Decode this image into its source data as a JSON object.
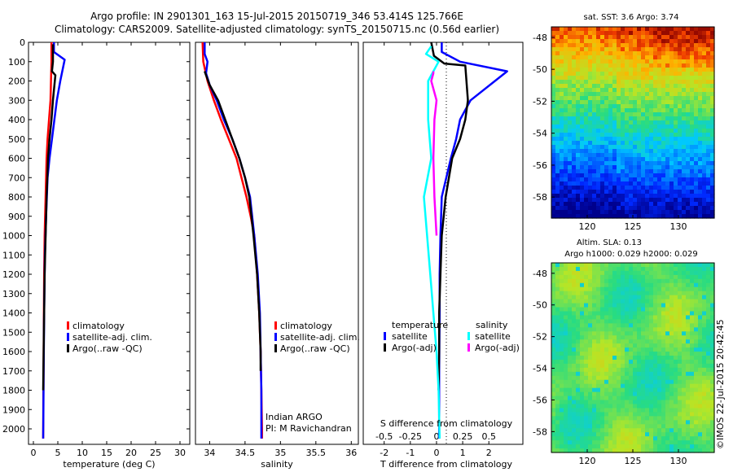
{
  "header": {
    "line1": "Argo profile: IN 2901301_163 15-Jul-2015 20150719_346 53.414S 125.766E",
    "line2": "Climatology: CARS2009. Satellite-adjusted climatology: synTS_20150715.nc (0.56d earlier)"
  },
  "side_label": "©IMOS 22-Jul-2015 20:42:45",
  "colors": {
    "clim": "#ff0000",
    "sat": "#0000ff",
    "argo": "#000000",
    "sat_diff_s": "#00ffff",
    "argo_diff_s": "#ff00ff"
  },
  "chart_data": [
    {
      "id": "temperature",
      "type": "line",
      "xlabel": "temperature (deg C)",
      "ylabel": "",
      "xlim": [
        -1,
        32
      ],
      "ylim": [
        2080,
        0
      ],
      "xticks": [
        0,
        5,
        10,
        15,
        20,
        25,
        30
      ],
      "yticks": [
        0,
        100,
        200,
        300,
        400,
        500,
        600,
        700,
        800,
        900,
        1000,
        1100,
        1200,
        1300,
        1400,
        1500,
        1600,
        1700,
        1800,
        1900,
        2000
      ],
      "legend": {
        "placement": "center-right",
        "entries": [
          "climatology",
          "satellite-adj. clim.",
          "Argo(..raw -QC)"
        ]
      },
      "series": [
        {
          "name": "climatology",
          "color": "#ff0000",
          "x": [
            3.7,
            3.7,
            3.6,
            3.5,
            3.2,
            2.9,
            2.7,
            2.5,
            2.3,
            2.2,
            2.15,
            2.1,
            2.05,
            2.0
          ],
          "y": [
            0,
            100,
            200,
            300,
            400,
            500,
            600,
            800,
            1000,
            1200,
            1400,
            1600,
            1800,
            2050
          ]
        },
        {
          "name": "satellite-adj. clim.",
          "color": "#0000ff",
          "x": [
            4.2,
            4.2,
            6.4,
            5.5,
            4.8,
            4.3,
            3.8,
            3.3,
            2.9,
            2.6,
            2.35,
            2.2,
            2.1,
            2.05,
            2.0
          ],
          "y": [
            0,
            50,
            90,
            200,
            300,
            400,
            500,
            600,
            700,
            900,
            1100,
            1400,
            1700,
            1900,
            2050
          ]
        },
        {
          "name": "Argo(..raw -QC)",
          "color": "#000000",
          "x": [
            4.0,
            4.0,
            3.8,
            4.5,
            4.0,
            3.7,
            3.3,
            3.0,
            2.7,
            2.5,
            2.3,
            2.2,
            2.1,
            2.0
          ],
          "y": [
            10,
            100,
            150,
            170,
            300,
            400,
            500,
            600,
            800,
            1000,
            1200,
            1400,
            1600,
            1800
          ]
        }
      ]
    },
    {
      "id": "salinity",
      "type": "line",
      "xlabel": "salinity",
      "ylabel": "",
      "xlim": [
        33.8,
        36.1
      ],
      "ylim": [
        2080,
        0
      ],
      "xticks": [
        34,
        34.5,
        35,
        35.5,
        36
      ],
      "xticklabels": [
        "34",
        "34.5",
        "35",
        "35.5",
        "36"
      ],
      "legend": {
        "placement": "center-right",
        "entries": [
          "climatology",
          "satellite-adj. clim.",
          "Argo(..raw -QC)"
        ]
      },
      "annotations": [
        "Indian ARGO",
        "PI: M Ravichandran"
      ],
      "series": [
        {
          "name": "climatology",
          "color": "#ff0000",
          "x": [
            33.9,
            33.91,
            33.97,
            34.06,
            34.16,
            34.27,
            34.38,
            34.45,
            34.52,
            34.58,
            34.63,
            34.67,
            34.7,
            34.72,
            34.73,
            34.74,
            34.74
          ],
          "y": [
            0,
            100,
            200,
            300,
            400,
            500,
            600,
            700,
            800,
            900,
            1000,
            1200,
            1400,
            1600,
            1800,
            2000,
            2050
          ]
        },
        {
          "name": "satellite-adj. clim.",
          "color": "#0000ff",
          "x": [
            33.93,
            33.93,
            33.97,
            33.95,
            34.0,
            34.1,
            34.2,
            34.32,
            34.42,
            34.5,
            34.57,
            34.63,
            34.68,
            34.71,
            34.72,
            34.73,
            34.73
          ],
          "y": [
            0,
            60,
            100,
            160,
            220,
            300,
            400,
            500,
            600,
            700,
            800,
            1000,
            1200,
            1400,
            1600,
            1800,
            2050
          ]
        },
        {
          "name": "Argo(..raw -QC)",
          "color": "#000000",
          "x": [
            33.93,
            33.95,
            34.0,
            34.12,
            34.22,
            34.32,
            34.42,
            34.5,
            34.56,
            34.62,
            34.67,
            34.7,
            34.72,
            34.72
          ],
          "y": [
            150,
            170,
            220,
            300,
            400,
            500,
            600,
            700,
            800,
            1000,
            1200,
            1400,
            1600,
            1700
          ]
        }
      ]
    },
    {
      "id": "differences",
      "type": "line",
      "xlabel": "T difference from climatology",
      "xlabel_top": "S difference from climatology",
      "xlim_t": [
        -2.8,
        3.3
      ],
      "ylim": [
        2080,
        0
      ],
      "xticks_t": [
        -2,
        -1,
        0,
        1,
        2
      ],
      "xticks_s": [
        -0.5,
        -0.25,
        0,
        0.25,
        0.5
      ],
      "legend": {
        "placement": "center",
        "temperature_title": "temperature",
        "salinity_title": "salinity",
        "temperature_entries": [
          "satellite",
          "Argo(-adj)"
        ],
        "salinity_entries": [
          "satellite",
          "Argo(-adj)"
        ]
      },
      "series": [
        {
          "name": "temperature satellite",
          "color": "#0000ff",
          "x": [
            0.2,
            0.2,
            0.9,
            2.7,
            1.3,
            0.9,
            0.75,
            0.55,
            0.2,
            0.15,
            0.12,
            0.12,
            0.1,
            0.1
          ],
          "y": [
            0,
            50,
            100,
            150,
            300,
            400,
            500,
            600,
            800,
            1000,
            1200,
            1400,
            1700,
            2050
          ]
        },
        {
          "name": "temperature Argo(-adj)",
          "color": "#000000",
          "x": [
            -0.2,
            -0.1,
            0.3,
            1.1,
            1.2,
            1.1,
            0.9,
            0.6,
            0.35,
            0.2,
            0.15,
            0.1,
            0.1,
            0.08
          ],
          "y": [
            0,
            70,
            110,
            120,
            300,
            400,
            500,
            600,
            800,
            1000,
            1200,
            1400,
            1600,
            1800
          ]
        },
        {
          "name": "salinity satellite",
          "color": "#00ffff",
          "x": [
            -0.05,
            -0.1,
            0.02,
            -0.08,
            -0.08,
            -0.05,
            -0.12,
            -0.09,
            -0.06,
            -0.03,
            0,
            0.02,
            0.03
          ],
          "y": [
            20,
            60,
            100,
            200,
            400,
            600,
            800,
            1000,
            1200,
            1400,
            1600,
            1800,
            2050
          ]
        },
        {
          "name": "salinity Argo(-adj)",
          "color": "#ff00ff",
          "x": [
            -0.03,
            -0.03,
            -0.05,
            0.0,
            -0.02,
            -0.03,
            -0.02,
            0.0
          ],
          "y": [
            150,
            160,
            200,
            300,
            400,
            600,
            800,
            1000
          ]
        }
      ]
    },
    {
      "id": "sst-map",
      "type": "heatmap",
      "title": "sat. SST: 3.6 Argo: 3.74",
      "xticks": [
        "120",
        "125",
        "130"
      ],
      "yticks": [
        "-48",
        "-50",
        "-52",
        "-54",
        "-56",
        "-58"
      ]
    },
    {
      "id": "sla-map",
      "type": "heatmap",
      "title_line1": "Altim. SLA: 0.13",
      "title_line2": "Argo h1000: 0.029 h2000: 0.029",
      "xticks": [
        "120",
        "125",
        "130"
      ],
      "yticks": [
        "-48",
        "-50",
        "-52",
        "-54",
        "-56",
        "-58"
      ]
    }
  ]
}
